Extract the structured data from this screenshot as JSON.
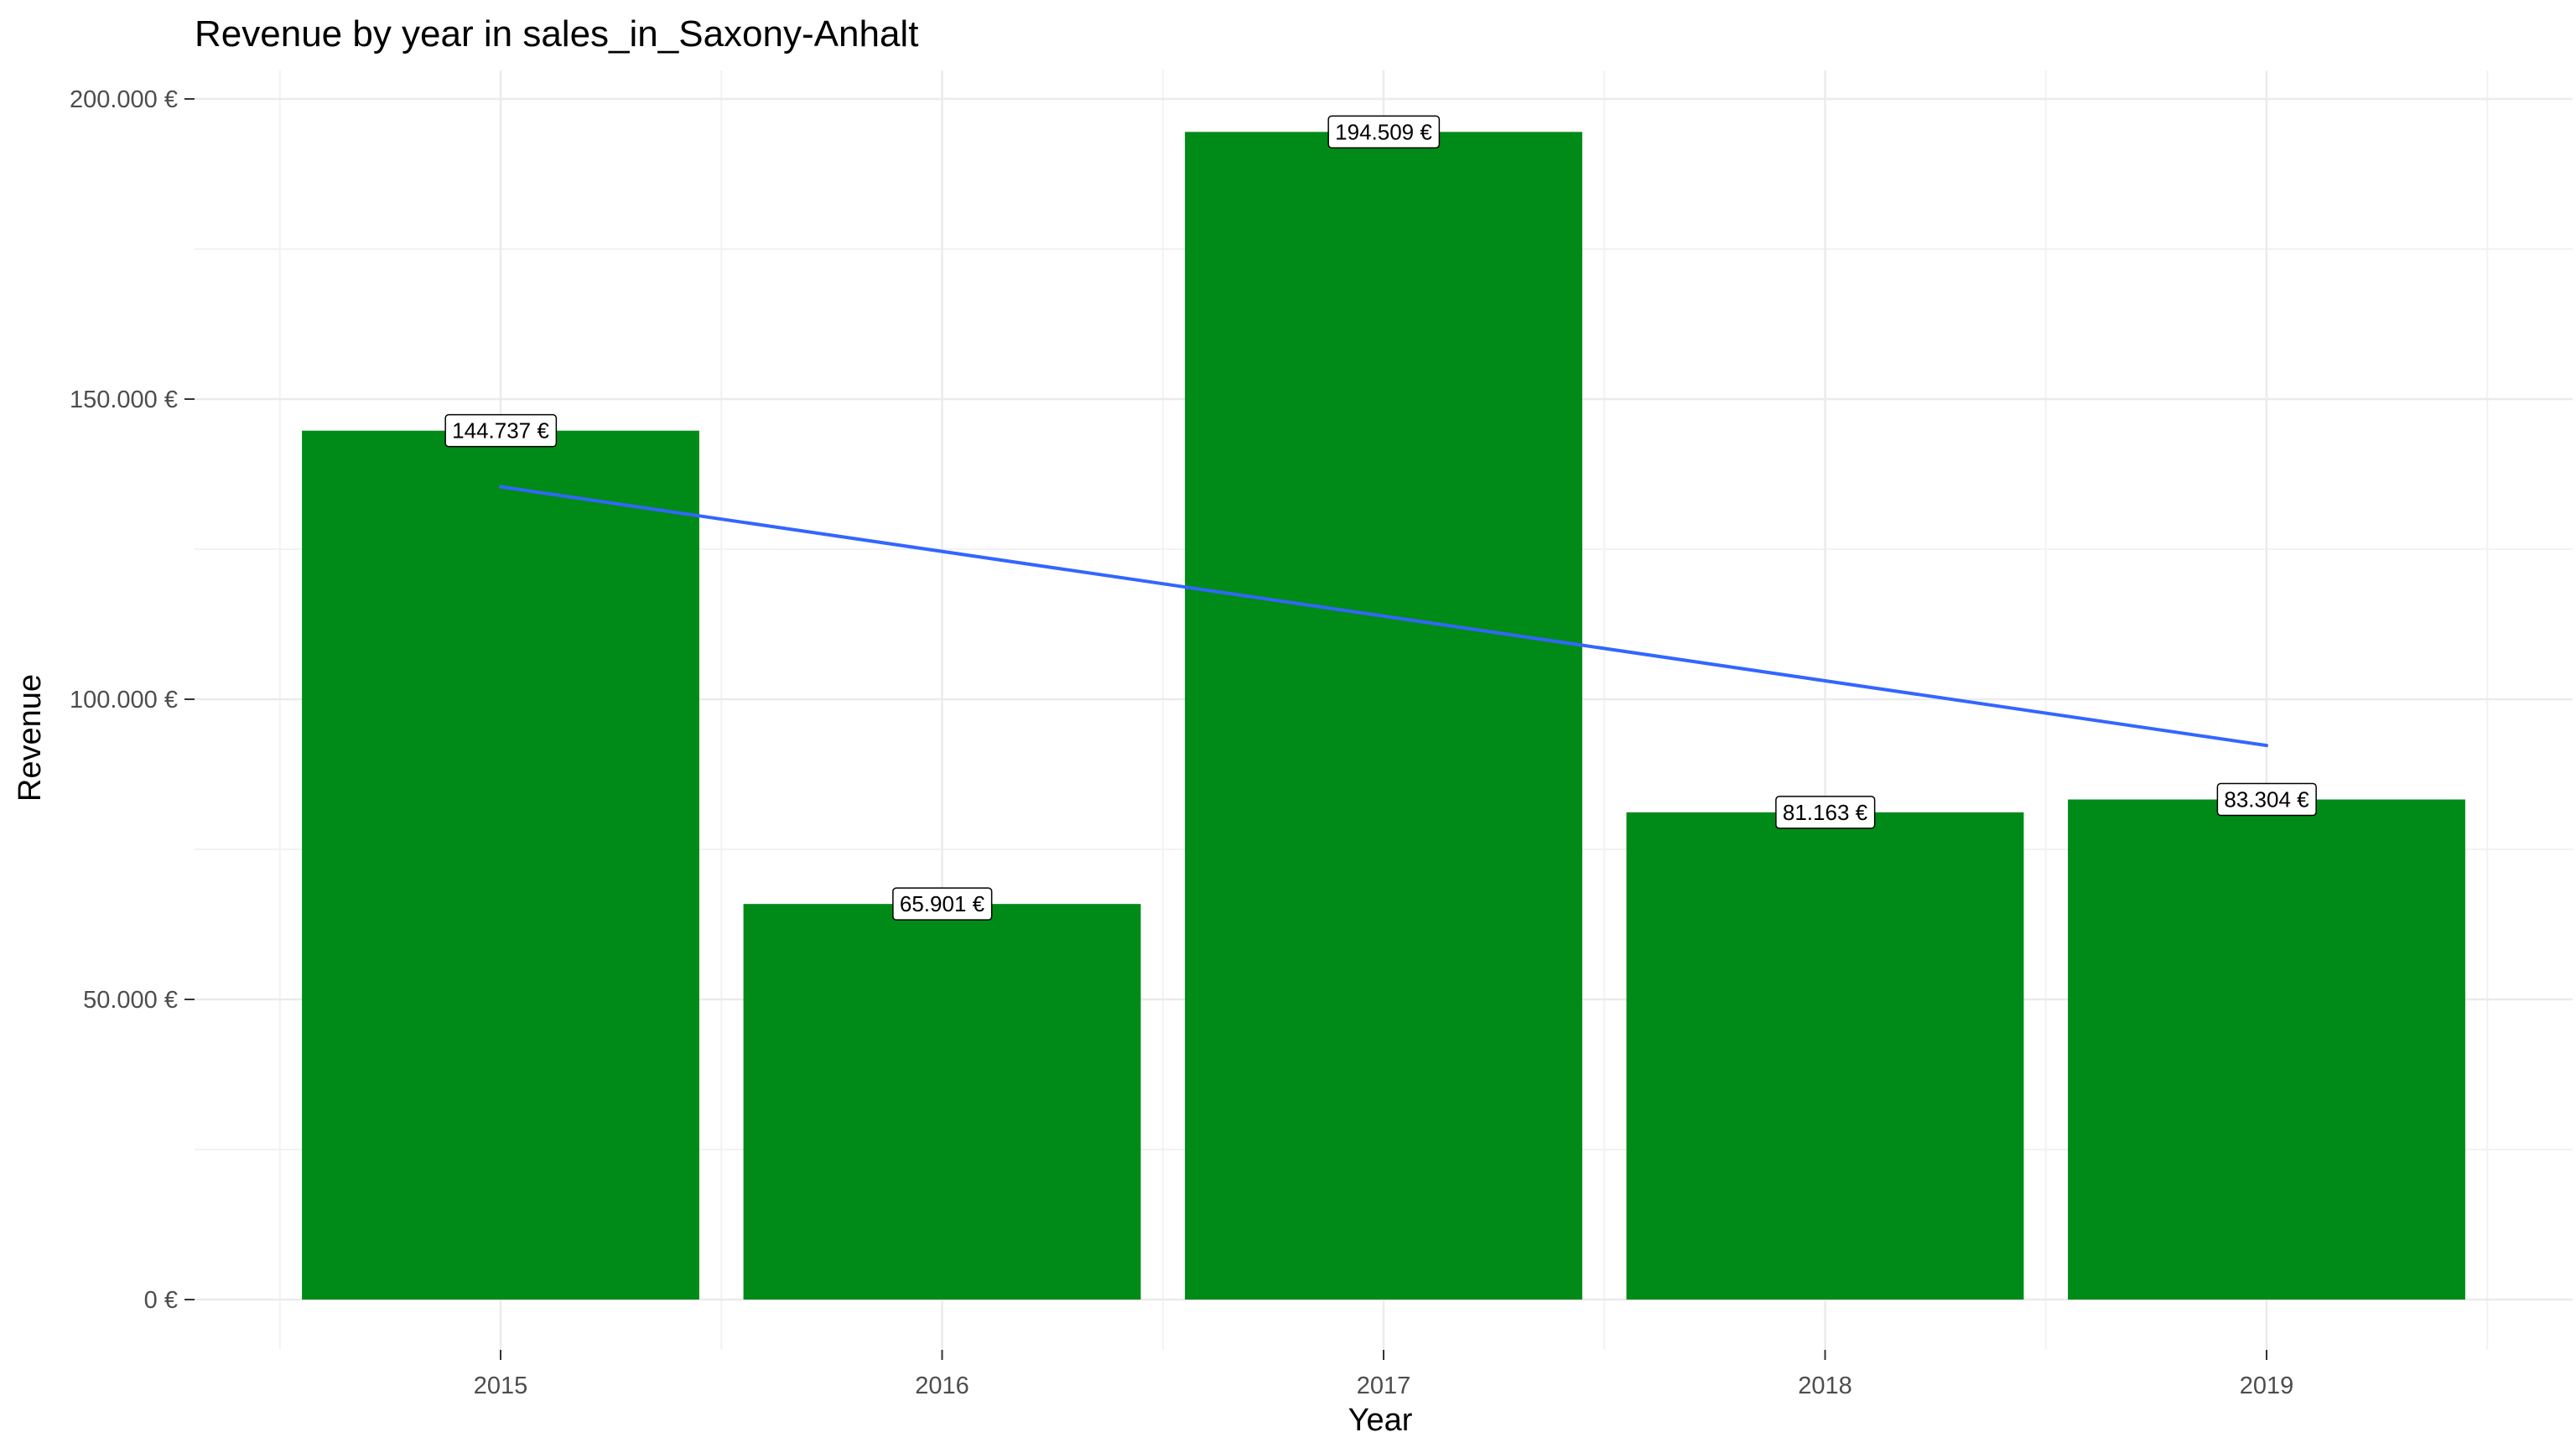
{
  "chart_data": {
    "type": "bar",
    "title": "Revenue by year in sales_in_Saxony-Anhalt",
    "xlabel": "Year",
    "ylabel": "Revenue",
    "categories": [
      "2015",
      "2016",
      "2017",
      "2018",
      "2019"
    ],
    "values": [
      144737,
      65901,
      194509,
      81163,
      83304
    ],
    "value_labels": [
      "144.737 €",
      "65.901 €",
      "194.509 €",
      "81.163 €",
      "83.304 €"
    ],
    "ylim": [
      0,
      200000
    ],
    "y_ticks": [
      0,
      50000,
      100000,
      150000,
      200000
    ],
    "y_tick_labels": [
      "0 €",
      "50.000 €",
      "100.000 €",
      "150.000 €",
      "200.000 €"
    ],
    "grid": true,
    "bar_color": "#008B18",
    "trend_line": {
      "type": "linear",
      "color": "#3366FF",
      "x": [
        "2015",
        "2019"
      ],
      "values": [
        135400,
        92300
      ]
    }
  }
}
